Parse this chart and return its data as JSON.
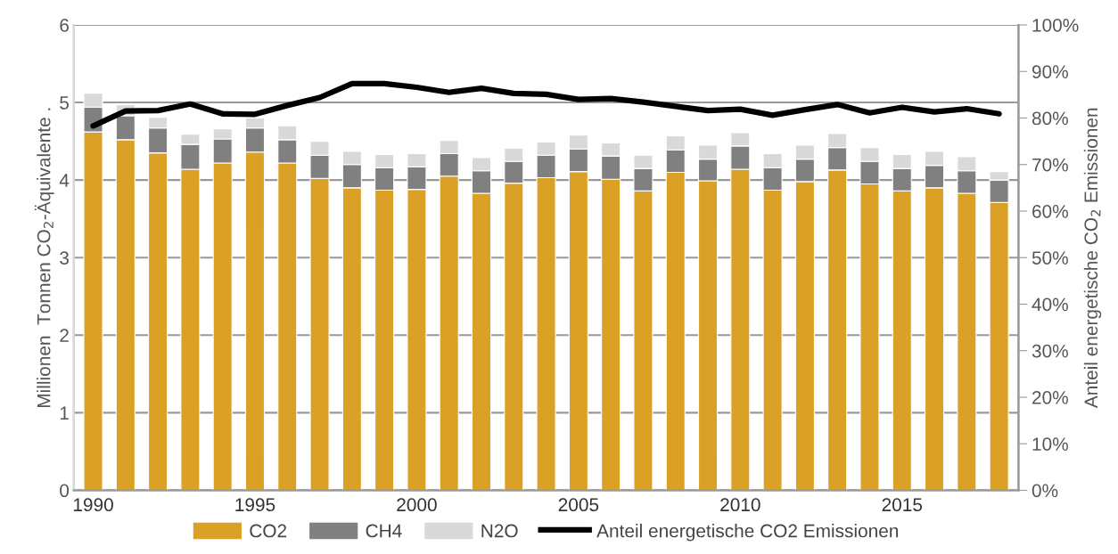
{
  "chart_data": {
    "type": "bar",
    "stacked": true,
    "ylabel": "Millionen  Tonnen CO$_{2}$-Äquivalente .",
    "y2label": "Anteil energetische CO$_{2}$ Emissionen",
    "categories": [
      "1990",
      null,
      null,
      null,
      null,
      "1995",
      null,
      null,
      null,
      null,
      "2000",
      null,
      null,
      null,
      null,
      "2005",
      null,
      null,
      null,
      null,
      "2010",
      null,
      null,
      null,
      null,
      "2015",
      null,
      null,
      null
    ],
    "series": [
      {
        "name": "CO2",
        "color": "#dba026",
        "values": [
          4.62,
          4.52,
          4.35,
          4.14,
          4.22,
          4.36,
          4.22,
          4.02,
          3.9,
          3.87,
          3.88,
          4.05,
          3.83,
          3.96,
          4.03,
          4.11,
          4.01,
          3.86,
          4.1,
          3.99,
          4.14,
          3.87,
          3.98,
          4.13,
          3.95,
          3.86,
          3.9,
          3.83,
          3.71
        ]
      },
      {
        "name": "CH4",
        "color": "#808080",
        "values": [
          0.32,
          0.31,
          0.32,
          0.32,
          0.31,
          0.31,
          0.3,
          0.3,
          0.3,
          0.29,
          0.29,
          0.29,
          0.29,
          0.28,
          0.29,
          0.29,
          0.3,
          0.29,
          0.29,
          0.28,
          0.3,
          0.29,
          0.29,
          0.29,
          0.29,
          0.29,
          0.29,
          0.29,
          0.29
        ]
      },
      {
        "name": "N2O",
        "color": "#d9d9d9",
        "values": [
          0.18,
          0.14,
          0.14,
          0.13,
          0.13,
          0.13,
          0.18,
          0.18,
          0.17,
          0.17,
          0.17,
          0.17,
          0.17,
          0.17,
          0.17,
          0.18,
          0.17,
          0.17,
          0.18,
          0.18,
          0.17,
          0.18,
          0.18,
          0.18,
          0.18,
          0.18,
          0.18,
          0.18,
          0.11
        ]
      },
      {
        "name": "Anteil energetische CO2 Emissionen",
        "type": "line",
        "axis": "y2",
        "color": "#000000",
        "values": [
          78.3,
          81.5,
          81.6,
          83.0,
          80.9,
          80.8,
          82.7,
          84.4,
          87.4,
          87.4,
          86.6,
          85.5,
          86.4,
          85.3,
          85.1,
          84.0,
          84.2,
          83.4,
          82.5,
          81.6,
          81.9,
          80.6,
          81.8,
          82.9,
          81.1,
          82.3,
          81.3,
          82.0,
          80.9
        ]
      }
    ],
    "ylim": [
      0,
      6
    ],
    "yticks": [
      0,
      1,
      2,
      3,
      4,
      5,
      6
    ],
    "y2lim": [
      0,
      100
    ],
    "y2ticks": [
      {
        "value": 0,
        "label": "0%"
      },
      {
        "value": 10,
        "label": "10%"
      },
      {
        "value": 20,
        "label": "20%"
      },
      {
        "value": 30,
        "label": "30%"
      },
      {
        "value": 40,
        "label": "40%"
      },
      {
        "value": 50,
        "label": "50%"
      },
      {
        "value": 60,
        "label": "60%"
      },
      {
        "value": 70,
        "label": "70%"
      },
      {
        "value": 80,
        "label": "80%"
      },
      {
        "value": 90,
        "label": "90%"
      },
      {
        "value": 100,
        "label": "100%"
      }
    ],
    "grid": "y",
    "legend": "bottom"
  }
}
